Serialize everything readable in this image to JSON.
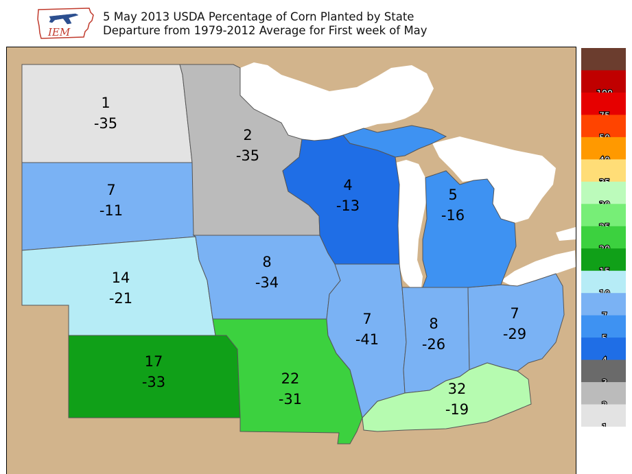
{
  "title": {
    "line1": "5 May 2013 USDA Percentage of Corn Planted by State",
    "line2": "Departure from 1979-2012 Average for First week of May"
  },
  "logo": {
    "text": "IEM",
    "icon": "iowa-state-outline-with-airplane-logo"
  },
  "colors": {
    "land": "#d2b48c",
    "water": "#ffffff",
    "state_border": "#555555"
  },
  "states": [
    {
      "id": "north-dakota",
      "value": "1",
      "departure": "-35",
      "color": "#e3e3e3"
    },
    {
      "id": "minnesota",
      "value": "2",
      "departure": "-35",
      "color": "#bbbbbb"
    },
    {
      "id": "south-dakota",
      "value": "7",
      "departure": "-11",
      "color": "#7ab2f4"
    },
    {
      "id": "wisconsin",
      "value": "4",
      "departure": "-13",
      "color": "#1f6ee6"
    },
    {
      "id": "michigan",
      "value": "5",
      "departure": "-16",
      "color": "#3e92f2"
    },
    {
      "id": "iowa",
      "value": "8",
      "departure": "-34",
      "color": "#7ab2f4"
    },
    {
      "id": "nebraska",
      "value": "14",
      "departure": "-21",
      "color": "#b6ecf6"
    },
    {
      "id": "illinois",
      "value": "7",
      "departure": "-41",
      "color": "#7ab2f4"
    },
    {
      "id": "indiana",
      "value": "8",
      "departure": "-26",
      "color": "#7ab2f4"
    },
    {
      "id": "ohio",
      "value": "7",
      "departure": "-29",
      "color": "#7ab2f4"
    },
    {
      "id": "kansas",
      "value": "17",
      "departure": "-33",
      "color": "#10a018"
    },
    {
      "id": "missouri",
      "value": "22",
      "departure": "-31",
      "color": "#3cd13f"
    },
    {
      "id": "kentucky",
      "value": "32",
      "departure": "-19",
      "color": "#b6fbb0"
    }
  ],
  "legend": [
    {
      "label": "",
      "color": "#6b3d2e"
    },
    {
      "label": "100",
      "color": "#c00000"
    },
    {
      "label": "75",
      "color": "#e60000"
    },
    {
      "label": "50",
      "color": "#ff4400"
    },
    {
      "label": "40",
      "color": "#ff9900"
    },
    {
      "label": "35",
      "color": "#ffdd77"
    },
    {
      "label": "30",
      "color": "#bcfbbb"
    },
    {
      "label": "25",
      "color": "#77ee77"
    },
    {
      "label": "20",
      "color": "#3cd13f"
    },
    {
      "label": "15",
      "color": "#10a018"
    },
    {
      "label": "10",
      "color": "#b6ecf6"
    },
    {
      "label": "7",
      "color": "#7ab2f4"
    },
    {
      "label": "5",
      "color": "#3e92f2"
    },
    {
      "label": "4",
      "color": "#1f6ee6"
    },
    {
      "label": "3",
      "color": "#6a6a6a"
    },
    {
      "label": "2",
      "color": "#bbbbbb"
    },
    {
      "label": "1",
      "color": "#e3e3e3"
    }
  ]
}
